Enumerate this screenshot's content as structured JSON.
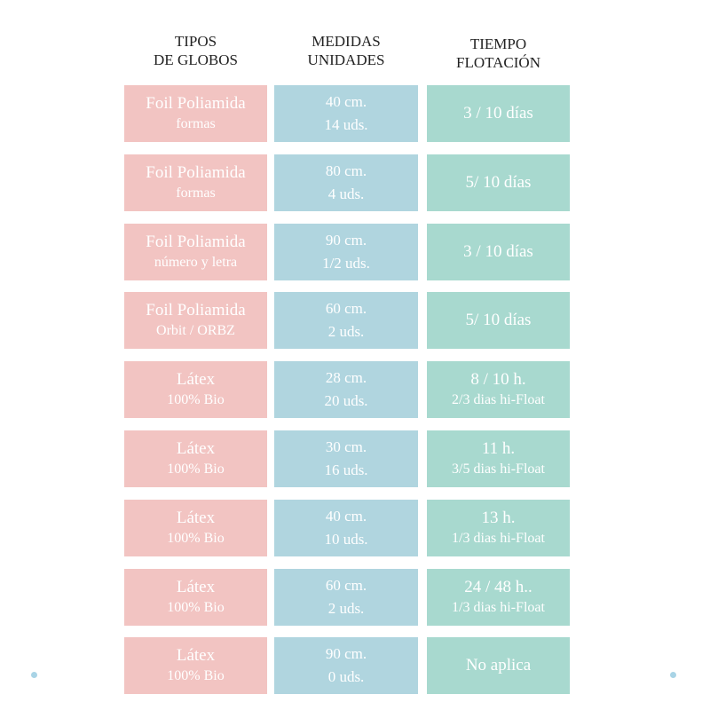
{
  "header": [
    [
      "TIPOS",
      "DE GLOBOS"
    ],
    [
      "MEDIDAS",
      "UNIDADES"
    ],
    [
      "TIEMPO",
      "FLOTACIÓN"
    ]
  ],
  "rows": [
    [
      [
        "Foil Poliamida",
        "formas"
      ],
      [
        "40 cm.",
        "14 uds."
      ],
      [
        "3 / 10 días"
      ]
    ],
    [
      [
        "Foil Poliamida",
        "formas"
      ],
      [
        "80 cm.",
        "4 uds."
      ],
      [
        "5/ 10 días"
      ]
    ],
    [
      [
        "Foil Poliamida",
        "número y letra"
      ],
      [
        "90 cm.",
        "1/2 uds."
      ],
      [
        "3 / 10 días"
      ]
    ],
    [
      [
        "Foil Poliamida",
        "Orbit / ORBZ"
      ],
      [
        "60 cm.",
        "2 uds."
      ],
      [
        "5/ 10 días"
      ]
    ],
    [
      [
        "Látex",
        "100% Bio"
      ],
      [
        "28 cm.",
        "20 uds."
      ],
      [
        "8 / 10 h.",
        "2/3 dias hi-Float"
      ]
    ],
    [
      [
        "Látex",
        "100% Bio"
      ],
      [
        "30 cm.",
        "16 uds."
      ],
      [
        "11 h.",
        "3/5 dias hi-Float"
      ]
    ],
    [
      [
        "Látex",
        "100% Bio"
      ],
      [
        "40 cm.",
        "10 uds."
      ],
      [
        "13 h.",
        "1/3 dias hi-Float"
      ]
    ],
    [
      [
        "Látex",
        "100% Bio"
      ],
      [
        "60 cm.",
        "2 uds."
      ],
      [
        "24 / 48 h..",
        "1/3 dias hi-Float"
      ]
    ],
    [
      [
        "Látex",
        "100% Bio"
      ],
      [
        "90 cm.",
        "0 uds."
      ],
      [
        "No aplica"
      ]
    ]
  ]
}
